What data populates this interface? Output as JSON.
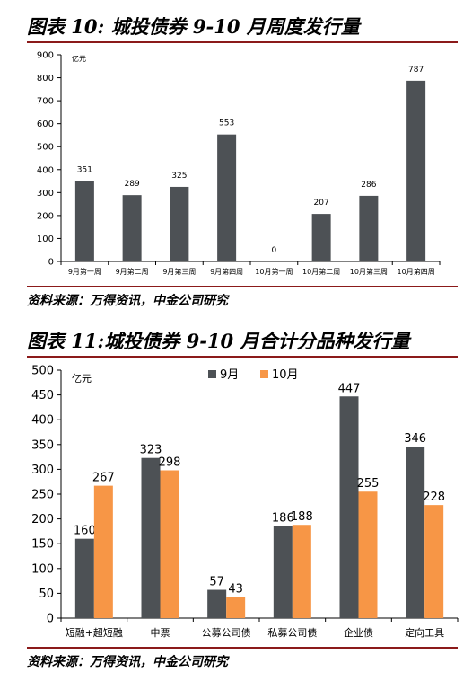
{
  "figure10": {
    "title": "图表 10: 城投债券 9-10 月周度发行量",
    "source": "资料来源：万得资讯，中金公司研究"
  },
  "figure11": {
    "title": "图表 11:城投债券 9-10 月合计分品种发行量",
    "source": "资料来源：万得资讯，中金公司研究"
  },
  "colors": {
    "sept": "#4D5155",
    "oct": "#F79646",
    "rule": "#8B1A1A"
  },
  "chart_data": [
    {
      "type": "bar",
      "title": "城投债券 9-10 月周度发行量",
      "ylabel": "亿元",
      "xlabel": "",
      "categories": [
        "9月第一周",
        "9月第二周",
        "9月第三周",
        "9月第四周",
        "10月第一周",
        "10月第二周",
        "10月第三周",
        "10月第四周"
      ],
      "values": [
        351,
        289,
        325,
        553,
        0,
        207,
        286,
        787
      ],
      "ylim": [
        0,
        900
      ],
      "yticks": [
        0,
        100,
        200,
        300,
        400,
        500,
        600,
        700,
        800,
        900
      ],
      "grid": false,
      "legend": "none"
    },
    {
      "type": "bar",
      "title": "城投债券 9-10 月合计分品种发行量",
      "ylabel": "亿元",
      "xlabel": "",
      "categories": [
        "短融+超短融",
        "中票",
        "公募公司债",
        "私募公司债",
        "企业债",
        "定向工具"
      ],
      "series": [
        {
          "name": "9月",
          "values": [
            160,
            323,
            57,
            186,
            447,
            346
          ]
        },
        {
          "name": "10月",
          "values": [
            267,
            298,
            43,
            188,
            255,
            228
          ]
        }
      ],
      "ylim": [
        0,
        500
      ],
      "yticks": [
        0,
        50,
        100,
        150,
        200,
        250,
        300,
        350,
        400,
        450,
        500
      ],
      "grid": false,
      "legend": "top-center"
    }
  ]
}
